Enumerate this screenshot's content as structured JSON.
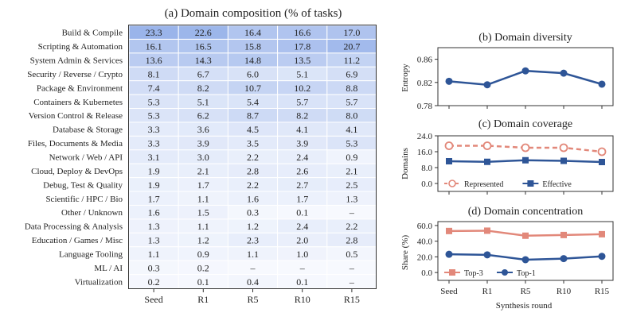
{
  "figure": {
    "heatmap": {
      "title": "(a) Domain composition (% of tasks)",
      "columns": [
        "Seed",
        "R1",
        "R5",
        "R10",
        "R15"
      ],
      "rows": [
        {
          "label": "Build & Compile",
          "values": [
            "23.3",
            "22.6",
            "16.4",
            "16.6",
            "17.0"
          ]
        },
        {
          "label": "Scripting & Automation",
          "values": [
            "16.1",
            "16.5",
            "15.8",
            "17.8",
            "20.7"
          ]
        },
        {
          "label": "System Admin & Services",
          "values": [
            "13.6",
            "14.3",
            "14.8",
            "13.5",
            "11.2"
          ]
        },
        {
          "label": "Security / Reverse / Crypto",
          "values": [
            "8.1",
            "6.7",
            "6.0",
            "5.1",
            "6.9"
          ]
        },
        {
          "label": "Package & Environment",
          "values": [
            "7.4",
            "8.2",
            "10.7",
            "10.2",
            "8.8"
          ]
        },
        {
          "label": "Containers & Kubernetes",
          "values": [
            "5.3",
            "5.1",
            "5.4",
            "5.7",
            "5.7"
          ]
        },
        {
          "label": "Version Control & Release",
          "values": [
            "5.3",
            "6.2",
            "8.7",
            "8.2",
            "8.0"
          ]
        },
        {
          "label": "Database & Storage",
          "values": [
            "3.3",
            "3.6",
            "4.5",
            "4.1",
            "4.1"
          ]
        },
        {
          "label": "Files, Documents & Media",
          "values": [
            "3.3",
            "3.9",
            "3.5",
            "3.9",
            "5.3"
          ]
        },
        {
          "label": "Network / Web / API",
          "values": [
            "3.1",
            "3.0",
            "2.2",
            "2.4",
            "0.9"
          ]
        },
        {
          "label": "Cloud, Deploy & DevOps",
          "values": [
            "1.9",
            "2.1",
            "2.8",
            "2.6",
            "2.1"
          ]
        },
        {
          "label": "Debug, Test & Quality",
          "values": [
            "1.9",
            "1.7",
            "2.2",
            "2.7",
            "2.5"
          ]
        },
        {
          "label": "Scientific / HPC / Bio",
          "values": [
            "1.7",
            "1.1",
            "1.6",
            "1.7",
            "1.3"
          ]
        },
        {
          "label": "Other / Unknown",
          "values": [
            "1.6",
            "1.5",
            "0.3",
            "0.1",
            "–"
          ]
        },
        {
          "label": "Data Processing & Analysis",
          "values": [
            "1.3",
            "1.1",
            "1.2",
            "2.4",
            "2.2"
          ]
        },
        {
          "label": "Education / Games / Misc",
          "values": [
            "1.3",
            "1.2",
            "2.3",
            "2.0",
            "2.8"
          ]
        },
        {
          "label": "Language Tooling",
          "values": [
            "1.1",
            "0.9",
            "1.1",
            "1.0",
            "0.5"
          ]
        },
        {
          "label": "ML / AI",
          "values": [
            "0.3",
            "0.2",
            "–",
            "–",
            "–"
          ]
        },
        {
          "label": "Virtualization",
          "values": [
            "0.2",
            "0.1",
            "0.4",
            "0.1",
            "–"
          ]
        }
      ],
      "colors": {
        "low": "#f7f9fe",
        "high": "#9ab4ea",
        "border": "#333333"
      }
    },
    "shared_x": {
      "categories": [
        "Seed",
        "R1",
        "R5",
        "R10",
        "R15"
      ],
      "xlabel": "Synthesis round"
    }
  },
  "chart_data": [
    {
      "type": "heatmap",
      "title": "(a) Domain composition (% of tasks)",
      "categories": [
        "Seed",
        "R1",
        "R5",
        "R10",
        "R15"
      ]
    },
    {
      "type": "line",
      "title": "(b) Domain diversity",
      "ylabel": "Entropy",
      "ylim": [
        0.78,
        0.88
      ],
      "yticks": [
        "0.78",
        "0.82",
        "0.86"
      ],
      "categories": [
        "Seed",
        "R1",
        "R5",
        "R10",
        "R15"
      ],
      "series": [
        {
          "values": [
            0.822,
            0.816,
            0.84,
            0.836,
            0.817
          ],
          "color": "#2e5597",
          "marker": "circle-filled",
          "dashed": false
        }
      ],
      "grid": false
    },
    {
      "type": "line",
      "title": "(c) Domain coverage",
      "ylabel": "Domains",
      "ylim": [
        -4,
        24
      ],
      "yticks": [
        "0.0",
        "8.0",
        "16.0",
        "24.0"
      ],
      "categories": [
        "Seed",
        "R1",
        "R5",
        "R10",
        "R15"
      ],
      "series": [
        {
          "name": "Represented",
          "values": [
            19,
            19,
            18,
            18,
            16
          ],
          "color": "#e2887a",
          "marker": "circle-open",
          "dashed": true
        },
        {
          "name": "Effective",
          "values": [
            11.2,
            10.9,
            11.7,
            11.4,
            10.8
          ],
          "color": "#2e5597",
          "marker": "square-filled",
          "dashed": false
        }
      ],
      "legend": "lower-left",
      "grid": false
    },
    {
      "type": "line",
      "title": "(d) Domain concentration",
      "ylabel": "Share (%)",
      "ylim": [
        -10,
        65
      ],
      "yticks": [
        "0.0",
        "20.0",
        "40.0",
        "60.0"
      ],
      "categories": [
        "Seed",
        "R1",
        "R5",
        "R10",
        "R15"
      ],
      "xlabel": "Synthesis round",
      "series": [
        {
          "name": "Top-3",
          "values": [
            53.0,
            53.4,
            47.0,
            47.9,
            48.9
          ],
          "color": "#e2887a",
          "marker": "square-filled",
          "dashed": false
        },
        {
          "name": "Top-1",
          "values": [
            23.3,
            22.6,
            16.4,
            17.8,
            20.7
          ],
          "color": "#2e5597",
          "marker": "circle-filled",
          "dashed": false
        }
      ],
      "legend": "lower-left",
      "grid": false
    }
  ]
}
